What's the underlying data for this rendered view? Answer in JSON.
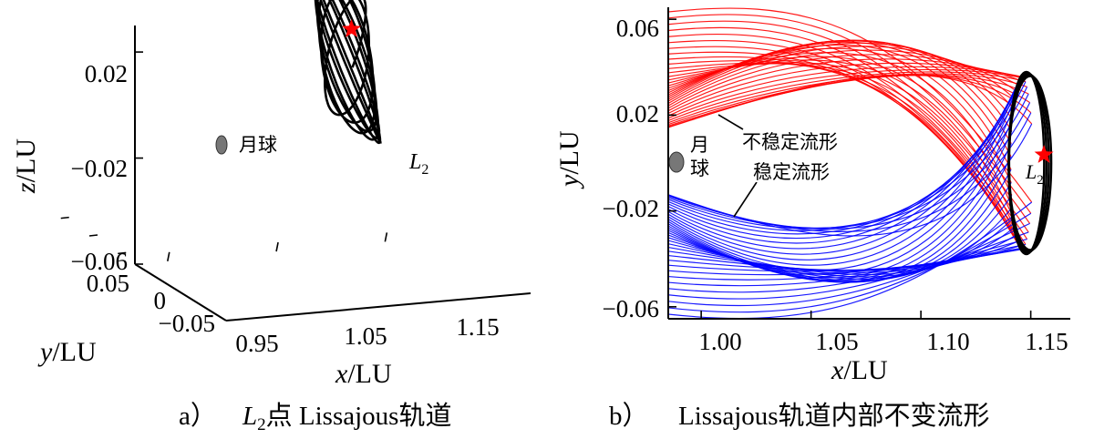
{
  "chart_data": [
    {
      "panel_label": "a）",
      "caption_var": "L",
      "caption_sub": "2",
      "caption_rest": "点 Lissajous轨道",
      "type": "line",
      "subtype": "3d-trajectory",
      "xlabel_var": "x",
      "xlabel_unit": "/LU",
      "ylabel_var": "y",
      "ylabel_unit": "/LU",
      "zlabel_var": "z",
      "zlabel_unit": "/LU",
      "xticks": [
        {
          "value": 0.95,
          "label": "0.95"
        },
        {
          "value": 1.05,
          "label": "1.05"
        },
        {
          "value": 1.15,
          "label": "1.15"
        }
      ],
      "yticks": [
        {
          "value": 0.05,
          "label": "0.05"
        },
        {
          "value": 0,
          "label": "0"
        },
        {
          "value": -0.05,
          "label": "−0.05"
        }
      ],
      "zticks": [
        {
          "value": 0.02,
          "label": "0.02"
        },
        {
          "value": -0.02,
          "label": "−0.02"
        },
        {
          "value": -0.06,
          "label": "−0.06"
        }
      ],
      "xlim": [
        0.92,
        1.2
      ],
      "ylim": [
        -0.08,
        0.08
      ],
      "zlim": [
        -0.06,
        0.03
      ],
      "moon": {
        "label": "月球",
        "x": 0.988,
        "y": 0,
        "z": 0
      },
      "l2": {
        "label_var": "L",
        "label_sub": "2",
        "x": 1.156,
        "y": 0,
        "z": 0
      },
      "series": [
        {
          "name": "Lissajous orbit",
          "color": "#000000",
          "ay": 0.055,
          "az": 0.035,
          "xamp": 0.006,
          "omega_y": 1.0,
          "omega_z": 0.92,
          "turns": 9
        }
      ]
    },
    {
      "panel_label": "b）",
      "caption_rest": "Lissajous轨道内部不变流形",
      "type": "line",
      "subtype": "trajectory-projection",
      "xlabel_var": "x",
      "xlabel_unit": "/LU",
      "ylabel_var": "y",
      "ylabel_unit": "/LU",
      "xticks": [
        {
          "value": 1.0,
          "label": "1.00"
        },
        {
          "value": 1.05,
          "label": "1.05"
        },
        {
          "value": 1.1,
          "label": "1.10"
        },
        {
          "value": 1.15,
          "label": "1.15"
        }
      ],
      "yticks": [
        {
          "value": 0.06,
          "label": "0.06"
        },
        {
          "value": 0.02,
          "label": "0.02"
        },
        {
          "value": -0.02,
          "label": "−0.02"
        },
        {
          "value": -0.06,
          "label": "−0.06"
        }
      ],
      "xlim": [
        0.985,
        1.168
      ],
      "ylim": [
        -0.065,
        0.065
      ],
      "moon": {
        "label": "月\n球",
        "line1": "月",
        "line2": "球",
        "x": 0.988,
        "y": 0
      },
      "l2": {
        "label_var": "L",
        "label_sub": "2",
        "x": 1.156,
        "y": 0.0
      },
      "annotations": [
        {
          "text": "不稳定流形",
          "target": "unstable"
        },
        {
          "text": "稳定流形",
          "target": "stable"
        }
      ],
      "series": [
        {
          "name": "不稳定流形",
          "color": "#ff0000",
          "count": 36,
          "start_x": 1.146,
          "end_x": 0.985,
          "y_top": 0.062,
          "y_low": 0.012
        },
        {
          "name": "稳定流形",
          "color": "#0000ff",
          "count": 36,
          "start_x": 1.146,
          "end_x": 0.985,
          "y_top": -0.062,
          "y_low": -0.01
        },
        {
          "name": "Lissajous orbit",
          "color": "#000000",
          "cx": 1.148,
          "ry": 0.038,
          "rx": 0.006
        }
      ]
    }
  ]
}
